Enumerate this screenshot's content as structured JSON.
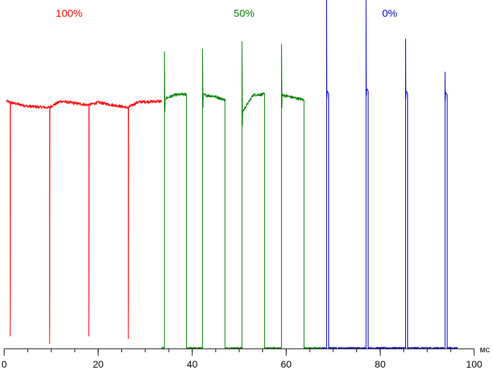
{
  "chart_data": {
    "type": "line",
    "title": "",
    "xlabel": "мс",
    "ylabel": "",
    "xlim": [
      0,
      100
    ],
    "ylim": [
      0,
      1.15
    ],
    "x_ticks": [
      {
        "value": 0,
        "label": "0"
      },
      {
        "value": 20,
        "label": "20"
      },
      {
        "value": 40,
        "label": "40"
      },
      {
        "value": 60,
        "label": "60"
      },
      {
        "value": 80,
        "label": "80"
      },
      {
        "value": 100,
        "label": "100"
      }
    ],
    "minor_tick_step": 5,
    "grid": false,
    "series": [
      {
        "name": "100%",
        "color": "#ff0000",
        "period": 8.4,
        "x_range": [
          0.5,
          33.5
        ],
        "segments": [
          {
            "x": [
              0.5,
              1.3,
              5.0,
              9.5,
              12.0,
              17.9,
              20.0,
              26.3,
              28.5,
              33.5
            ],
            "y": [
              0.975,
              0.97,
              0.955,
              0.95,
              0.975,
              0.96,
              0.97,
              0.95,
              0.972,
              0.975
            ]
          }
        ],
        "dips": [
          {
            "x": 1.3,
            "min": 0.05
          },
          {
            "x": 9.7,
            "min": 0.02
          },
          {
            "x": 18.0,
            "min": 0.05
          },
          {
            "x": 26.4,
            "min": 0.04
          }
        ]
      },
      {
        "name": "50%",
        "color": "#008000",
        "x_range": [
          33.5,
          67.5
        ],
        "baseline": 0.003,
        "pulses": [
          {
            "start": 34.1,
            "spike": 1.17,
            "on": [
              0.985,
              1.0,
              1.002
            ],
            "end": 38.8
          },
          {
            "start": 42.2,
            "spike": 1.18,
            "on": [
              1.0,
              0.995,
              0.98
            ],
            "end": 47.0
          },
          {
            "start": 50.6,
            "spike": 1.21,
            "on": [
              0.93,
              1.0,
              1.002
            ],
            "end": 55.4
          },
          {
            "start": 59.0,
            "spike": 1.2,
            "on": [
              1.0,
              0.99,
              0.98
            ],
            "end": 63.8
          }
        ]
      },
      {
        "name": "0%",
        "color": "#0000cc",
        "x_range": [
          67.5,
          96.5
        ],
        "baseline": 0.003,
        "spikes": [
          {
            "x": 68.6,
            "peak": 1.39,
            "plateau": 1.015,
            "width": 0.45
          },
          {
            "x": 77.0,
            "peak": 1.41,
            "plateau": 1.025,
            "width": 0.45
          },
          {
            "x": 85.4,
            "peak": 1.22,
            "plateau": 1.015,
            "width": 0.45
          },
          {
            "x": 93.8,
            "peak": 1.09,
            "plateau": 1.01,
            "width": 0.45
          }
        ]
      }
    ]
  }
}
